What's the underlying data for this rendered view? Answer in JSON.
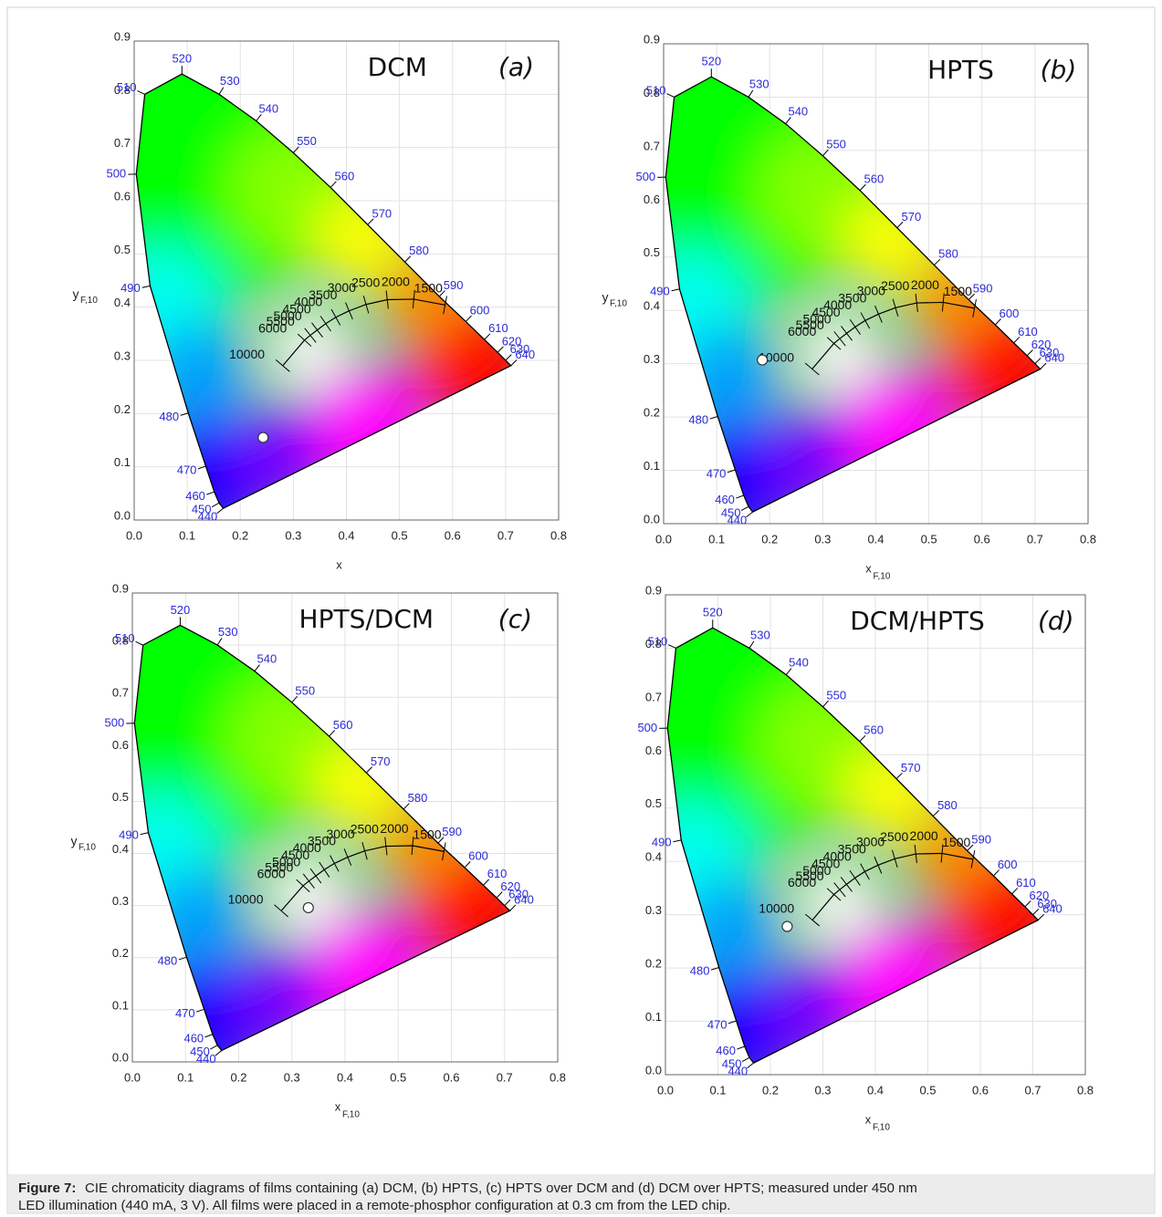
{
  "chart_data": [
    {
      "type": "scatter",
      "title": "DCM",
      "panel": "(a)",
      "x_label": "x",
      "y_label": "y",
      "y_label_sub": "F,10",
      "xlim": [
        0,
        0.8
      ],
      "ylim": [
        0,
        0.9
      ],
      "xticks": [
        {
          "value": 0,
          "label": "0.0"
        },
        0.1,
        0.2,
        0.3,
        0.4,
        0.5,
        0.6,
        0.7,
        0.8
      ],
      "yticks": [
        {
          "value": 0,
          "label": "0.0"
        },
        0.1,
        0.2,
        0.3,
        0.4,
        0.5,
        0.6,
        0.7,
        0.8,
        0.9
      ],
      "grid": true,
      "color": "#ffffff",
      "x": [
        0.243
      ],
      "y": [
        0.155
      ]
    },
    {
      "type": "scatter",
      "title": "HPTS",
      "panel": "(b)",
      "x_label": "x",
      "x_label_sub": "F,10",
      "y_label": "y",
      "y_label_sub": "F,10",
      "xlim": [
        0,
        0.8
      ],
      "ylim": [
        0,
        0.9
      ],
      "xticks": [
        {
          "value": 0,
          "label": "0.0"
        },
        0.1,
        0.2,
        0.3,
        0.4,
        0.5,
        0.6,
        0.7,
        0.8
      ],
      "yticks": [
        {
          "value": 0,
          "label": "0.0"
        },
        0.1,
        0.2,
        0.3,
        0.4,
        0.5,
        0.6,
        0.7,
        0.8,
        0.9
      ],
      "grid": true,
      "color": "#ffffff",
      "x": [
        0.186
      ],
      "y": [
        0.307
      ]
    },
    {
      "type": "scatter",
      "title": "HPTS/DCM",
      "panel": "(c)",
      "x_label": "x",
      "x_label_sub": "F,10",
      "y_label": "y",
      "y_label_sub": "F,10",
      "xlim": [
        0,
        0.8
      ],
      "ylim": [
        0,
        0.9
      ],
      "xticks": [
        {
          "value": 0,
          "label": "0.0"
        },
        0.1,
        0.2,
        0.3,
        0.4,
        0.5,
        0.6,
        0.7,
        0.8
      ],
      "yticks": [
        {
          "value": 0,
          "label": "0.0"
        },
        0.1,
        0.2,
        0.3,
        0.4,
        0.5,
        0.6,
        0.7,
        0.8,
        0.9
      ],
      "grid": true,
      "color": "#ffffff",
      "x": [
        0.331
      ],
      "y": [
        0.296
      ]
    },
    {
      "type": "scatter",
      "title": "DCM/HPTS",
      "panel": "(d)",
      "x_label": "x",
      "x_label_sub": "F,10",
      "xlim": [
        0,
        0.8
      ],
      "ylim": [
        0,
        0.9
      ],
      "xticks": [
        {
          "value": 0,
          "label": "0.0"
        },
        0.1,
        0.2,
        0.3,
        0.4,
        0.5,
        0.6,
        0.7,
        0.8
      ],
      "yticks": [
        {
          "value": 0,
          "label": "0.0"
        },
        0.1,
        0.2,
        0.3,
        0.4,
        0.5,
        0.6,
        0.7,
        0.8,
        0.9
      ],
      "grid": true,
      "color": "#ffffff",
      "x": [
        0.232
      ],
      "y": [
        0.278
      ]
    }
  ],
  "spectral_locus": {
    "wavelengths": [
      440,
      450,
      460,
      470,
      480,
      490,
      500,
      510,
      520,
      530,
      540,
      550,
      560,
      570,
      580,
      590,
      600,
      610,
      620,
      630,
      640
    ],
    "x": [
      0.168,
      0.16,
      0.151,
      0.135,
      0.102,
      0.03,
      0.004,
      0.02,
      0.09,
      0.16,
      0.23,
      0.3,
      0.37,
      0.44,
      0.51,
      0.575,
      0.625,
      0.66,
      0.685,
      0.7,
      0.71
    ],
    "y": [
      0.022,
      0.032,
      0.053,
      0.101,
      0.201,
      0.44,
      0.65,
      0.8,
      0.838,
      0.8,
      0.75,
      0.69,
      0.625,
      0.555,
      0.485,
      0.42,
      0.373,
      0.339,
      0.315,
      0.3,
      0.29
    ]
  },
  "planckian_locus": {
    "cct": [
      10000,
      6000,
      5500,
      5000,
      4500,
      4000,
      3500,
      3000,
      2500,
      2000,
      1500
    ],
    "x": [
      0.28,
      0.321,
      0.332,
      0.345,
      0.361,
      0.38,
      0.405,
      0.437,
      0.477,
      0.527,
      0.586
    ],
    "y": [
      0.29,
      0.338,
      0.347,
      0.357,
      0.369,
      0.381,
      0.393,
      0.405,
      0.414,
      0.415,
      0.404
    ]
  },
  "caption": {
    "label": "Figure 7:",
    "lines": [
      "CIE chromaticity diagrams of films containing (a) DCM, (b) HPTS, (c) HPTS over DCM and (d) DCM over HPTS; measured under 450 nm",
      "LED illumination (440 mA, 3 V). All films were placed in a remote-phosphor configuration at 0.3 cm from the LED chip."
    ]
  }
}
